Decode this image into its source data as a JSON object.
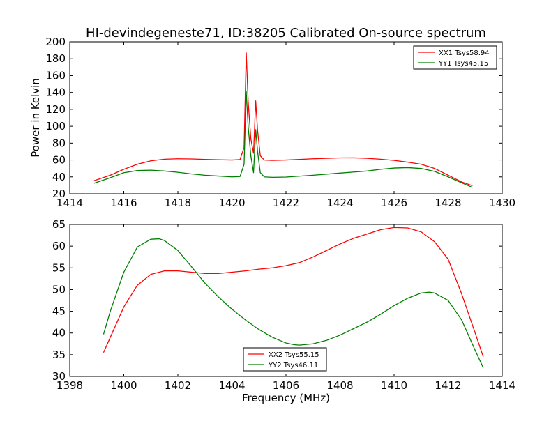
{
  "chart_data": [
    {
      "type": "line",
      "title": "HI-devindegeneste71, ID:38205 Calibrated On-source spectrum",
      "xlabel": "",
      "ylabel": "Power in Kelvin",
      "xlim": [
        1414,
        1430
      ],
      "ylim": [
        20,
        200
      ],
      "xticks": [
        "1414",
        "1416",
        "1418",
        "1420",
        "1422",
        "1424",
        "1426",
        "1428",
        "1430"
      ],
      "yticks": [
        "20",
        "40",
        "60",
        "80",
        "100",
        "120",
        "140",
        "160",
        "180",
        "200"
      ],
      "grid": false,
      "legend_position": "top-right",
      "series": [
        {
          "name": "XX1 Tsys58.94",
          "color": "#ff0000",
          "points": [
            [
              1414.9,
              35.5
            ],
            [
              1415.5,
              42
            ],
            [
              1416,
              49
            ],
            [
              1416.5,
              55
            ],
            [
              1417,
              59
            ],
            [
              1417.5,
              61
            ],
            [
              1418,
              61.5
            ],
            [
              1418.5,
              61.3
            ],
            [
              1419,
              60.8
            ],
            [
              1419.5,
              60.3
            ],
            [
              1420,
              60
            ],
            [
              1420.3,
              60.5
            ],
            [
              1420.45,
              75
            ],
            [
              1420.53,
              187
            ],
            [
              1420.6,
              130
            ],
            [
              1420.7,
              85
            ],
            [
              1420.8,
              68
            ],
            [
              1420.88,
              130
            ],
            [
              1420.95,
              95
            ],
            [
              1421.05,
              65
            ],
            [
              1421.2,
              60
            ],
            [
              1421.5,
              59.5
            ],
            [
              1422,
              60
            ],
            [
              1423,
              61.5
            ],
            [
              1424,
              62.5
            ],
            [
              1424.5,
              62.6
            ],
            [
              1425,
              62
            ],
            [
              1425.5,
              61
            ],
            [
              1426,
              59.5
            ],
            [
              1426.5,
              57.5
            ],
            [
              1427,
              55
            ],
            [
              1427.5,
              50
            ],
            [
              1428,
              42
            ],
            [
              1428.5,
              34
            ],
            [
              1428.9,
              29.5
            ]
          ]
        },
        {
          "name": "YY1 Tsys45.15",
          "color": "#008000",
          "points": [
            [
              1414.9,
              32.5
            ],
            [
              1415.5,
              39
            ],
            [
              1416,
              45
            ],
            [
              1416.5,
              47.5
            ],
            [
              1417,
              48
            ],
            [
              1417.5,
              47
            ],
            [
              1418,
              45.5
            ],
            [
              1418.5,
              43.5
            ],
            [
              1419,
              42
            ],
            [
              1419.5,
              41
            ],
            [
              1420,
              40
            ],
            [
              1420.3,
              40.5
            ],
            [
              1420.45,
              55
            ],
            [
              1420.53,
              141
            ],
            [
              1420.6,
              100
            ],
            [
              1420.7,
              65
            ],
            [
              1420.8,
              45
            ],
            [
              1420.88,
              96
            ],
            [
              1420.95,
              70
            ],
            [
              1421.05,
              45
            ],
            [
              1421.2,
              40
            ],
            [
              1421.5,
              39.5
            ],
            [
              1422,
              39.8
            ],
            [
              1423,
              42
            ],
            [
              1424,
              44.5
            ],
            [
              1425,
              47
            ],
            [
              1425.5,
              49
            ],
            [
              1426,
              50.5
            ],
            [
              1426.5,
              51
            ],
            [
              1427,
              50
            ],
            [
              1427.5,
              46.5
            ],
            [
              1428,
              40
            ],
            [
              1428.5,
              33
            ],
            [
              1428.9,
              27.5
            ]
          ]
        }
      ]
    },
    {
      "type": "line",
      "title": "",
      "xlabel": "Frequency (MHz)",
      "ylabel": "",
      "xlim": [
        1398,
        1414
      ],
      "ylim": [
        30,
        65
      ],
      "xticks": [
        "1398",
        "1400",
        "1402",
        "1404",
        "1406",
        "1408",
        "1410",
        "1412",
        "1414"
      ],
      "yticks": [
        "30",
        "35",
        "40",
        "45",
        "50",
        "55",
        "60",
        "65"
      ],
      "grid": false,
      "legend_position": "bottom-center",
      "series": [
        {
          "name": "XX2 Tsys55.15",
          "color": "#ff0000",
          "points": [
            [
              1399.25,
              35.5
            ],
            [
              1399.5,
              39
            ],
            [
              1400,
              46
            ],
            [
              1400.5,
              51
            ],
            [
              1401,
              53.5
            ],
            [
              1401.5,
              54.3
            ],
            [
              1402,
              54.3
            ],
            [
              1402.5,
              54
            ],
            [
              1403,
              53.7
            ],
            [
              1403.5,
              53.7
            ],
            [
              1404,
              54
            ],
            [
              1404.5,
              54.3
            ],
            [
              1405,
              54.7
            ],
            [
              1405.5,
              55
            ],
            [
              1406,
              55.5
            ],
            [
              1406.5,
              56.2
            ],
            [
              1407,
              57.5
            ],
            [
              1407.5,
              59
            ],
            [
              1408,
              60.5
            ],
            [
              1408.5,
              61.8
            ],
            [
              1409,
              62.8
            ],
            [
              1409.5,
              63.8
            ],
            [
              1410,
              64.3
            ],
            [
              1410.5,
              64.2
            ],
            [
              1411,
              63.3
            ],
            [
              1411.5,
              61
            ],
            [
              1412,
              57
            ],
            [
              1412.5,
              49
            ],
            [
              1413,
              40
            ],
            [
              1413.3,
              34.5
            ]
          ]
        },
        {
          "name": "YY2 Tsys46.11",
          "color": "#008000",
          "points": [
            [
              1399.25,
              39.7
            ],
            [
              1399.5,
              45
            ],
            [
              1400,
              54
            ],
            [
              1400.5,
              59.8
            ],
            [
              1401,
              61.6
            ],
            [
              1401.3,
              61.7
            ],
            [
              1401.5,
              61.3
            ],
            [
              1402,
              59
            ],
            [
              1402.5,
              55.3
            ],
            [
              1403,
              51.5
            ],
            [
              1403.5,
              48.3
            ],
            [
              1404,
              45.5
            ],
            [
              1404.5,
              43
            ],
            [
              1405,
              40.8
            ],
            [
              1405.5,
              39
            ],
            [
              1406,
              37.7
            ],
            [
              1406.3,
              37.3
            ],
            [
              1406.5,
              37.2
            ],
            [
              1407,
              37.5
            ],
            [
              1407.5,
              38.3
            ],
            [
              1408,
              39.5
            ],
            [
              1408.5,
              41
            ],
            [
              1409,
              42.5
            ],
            [
              1409.5,
              44.3
            ],
            [
              1410,
              46.3
            ],
            [
              1410.5,
              48
            ],
            [
              1411,
              49.2
            ],
            [
              1411.3,
              49.4
            ],
            [
              1411.5,
              49.2
            ],
            [
              1412,
              47.5
            ],
            [
              1412.5,
              43
            ],
            [
              1413,
              36
            ],
            [
              1413.3,
              32
            ]
          ]
        }
      ]
    }
  ]
}
